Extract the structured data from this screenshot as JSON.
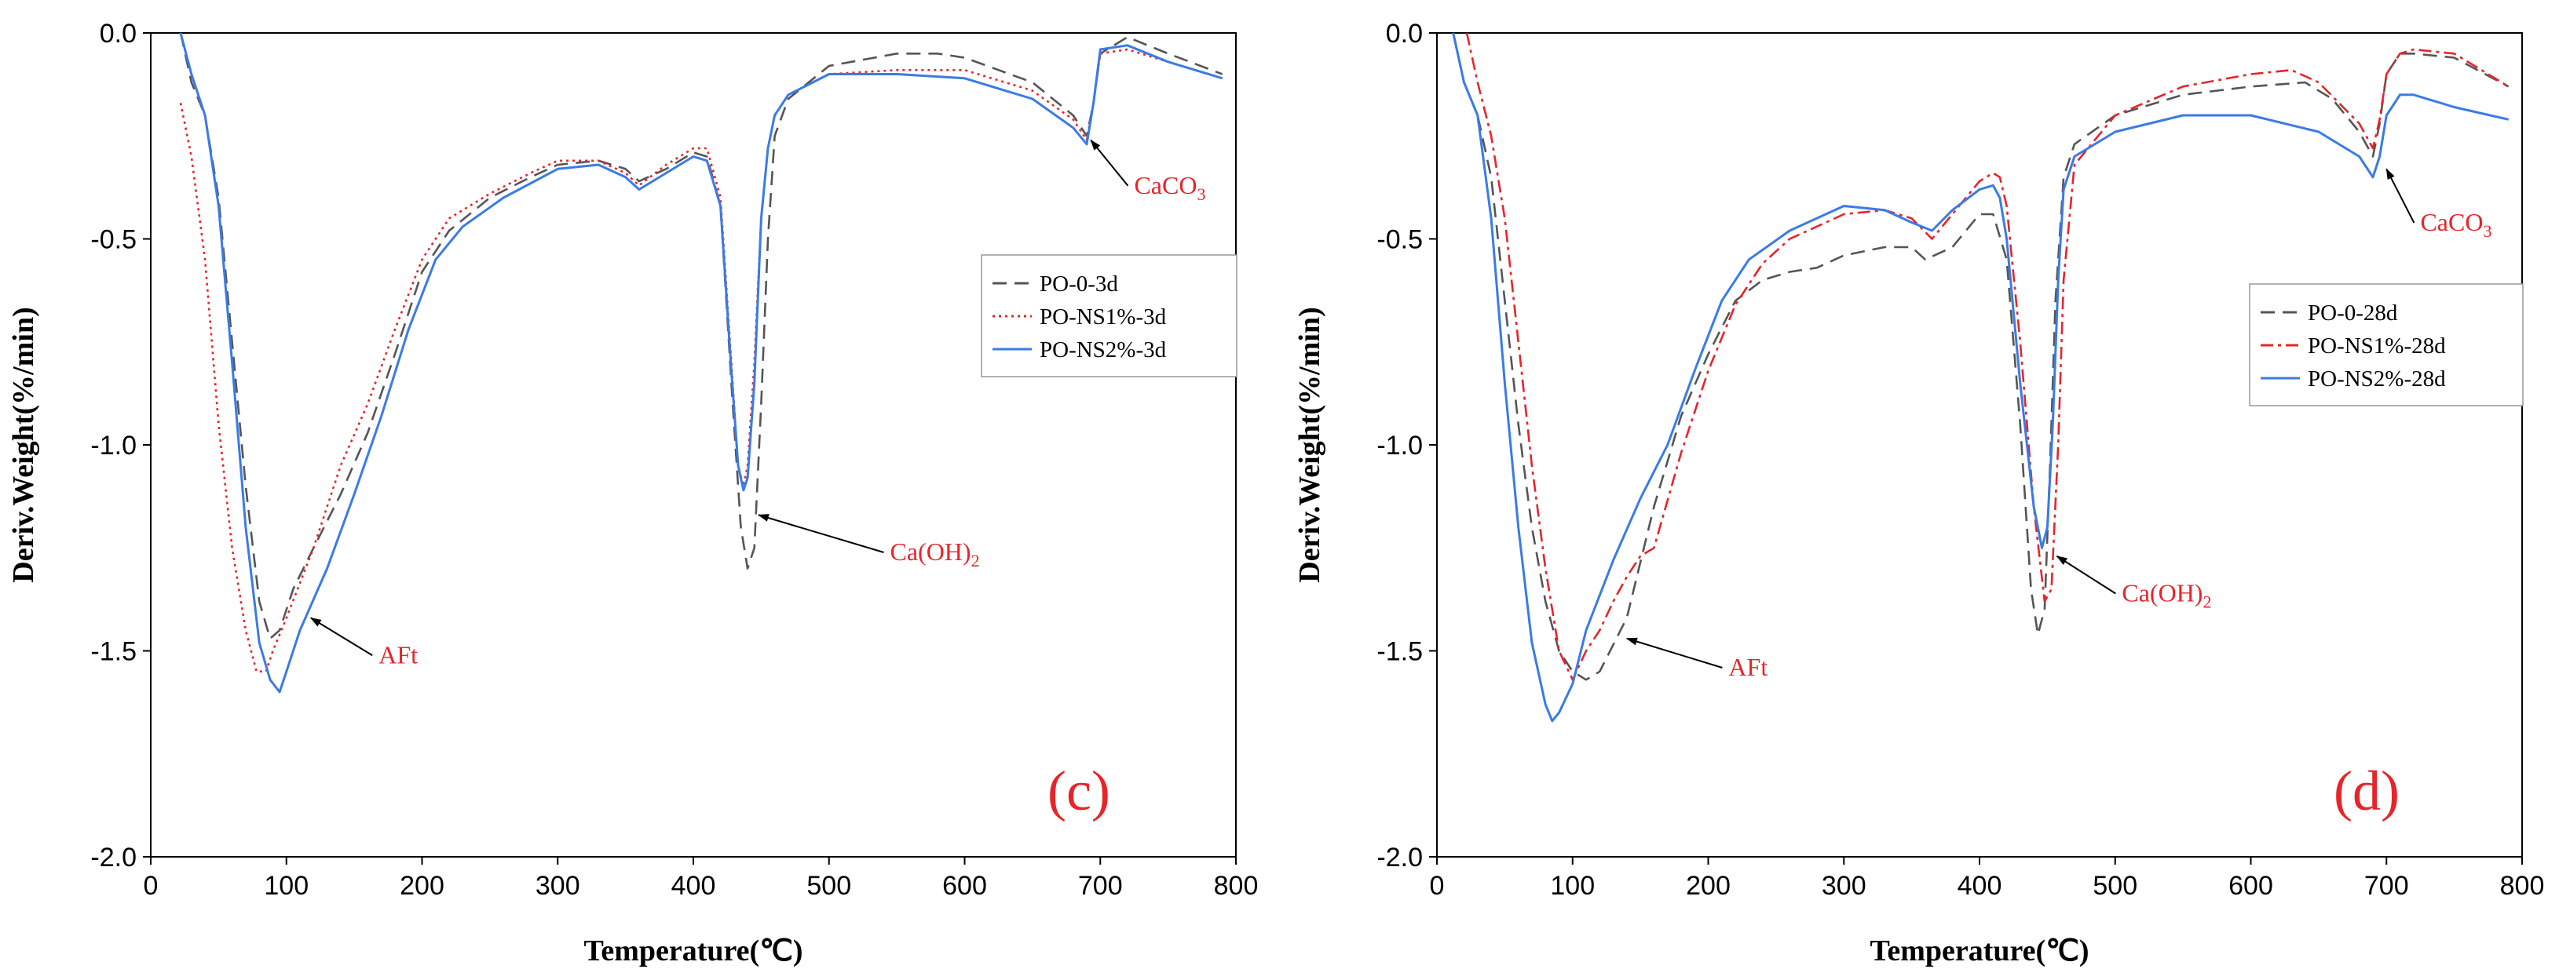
{
  "colors": {
    "PO-0": "#555555",
    "PO-NS1%": "#e8242a",
    "PO-NS2%": "#3a7be6",
    "annotation": "#e8242a"
  },
  "chart_data": [
    {
      "type": "line",
      "panel_label": "(c)",
      "xlabel": "Temperature(℃)",
      "ylabel": "Deriv.Weight(%/min)",
      "xlim": [
        0,
        800
      ],
      "ylim": [
        -2.0,
        0.0
      ],
      "xticks": [
        0,
        100,
        200,
        300,
        400,
        500,
        600,
        700,
        800
      ],
      "yticks": [
        0.0,
        -0.5,
        -1.0,
        -1.5,
        -2.0
      ],
      "xtick_labels": [
        "0",
        "100",
        "200",
        "300",
        "400",
        "500",
        "600",
        "700",
        "800"
      ],
      "ytick_labels": [
        "0.0",
        "-0.5",
        "-1.0",
        "-1.5",
        "-2.0"
      ],
      "legend_position": "center-right",
      "grid": false,
      "series": [
        {
          "name": "PO-0-3d",
          "style": "dash",
          "color_key": "PO-0",
          "x": [
            22,
            30,
            40,
            50,
            60,
            70,
            80,
            88,
            95,
            105,
            120,
            140,
            160,
            180,
            200,
            220,
            250,
            280,
            300,
            330,
            350,
            360,
            380,
            400,
            410,
            420,
            428,
            435,
            440,
            445,
            450,
            455,
            460,
            470,
            500,
            550,
            580,
            600,
            650,
            680,
            690,
            695,
            700,
            720,
            750,
            790
          ],
          "y": [
            0.0,
            -0.12,
            -0.2,
            -0.4,
            -0.75,
            -1.1,
            -1.38,
            -1.47,
            -1.45,
            -1.35,
            -1.25,
            -1.12,
            -0.97,
            -0.78,
            -0.58,
            -0.48,
            -0.4,
            -0.35,
            -0.32,
            -0.31,
            -0.33,
            -0.36,
            -0.33,
            -0.29,
            -0.3,
            -0.42,
            -0.85,
            -1.2,
            -1.3,
            -1.25,
            -0.9,
            -0.5,
            -0.25,
            -0.16,
            -0.08,
            -0.05,
            -0.05,
            -0.06,
            -0.12,
            -0.2,
            -0.25,
            -0.17,
            -0.05,
            -0.01,
            -0.05,
            -0.1
          ]
        },
        {
          "name": "PO-NS1%-3d",
          "style": "dot",
          "color_key": "PO-NS1%",
          "x": [
            22,
            30,
            40,
            50,
            60,
            70,
            78,
            85,
            90,
            100,
            120,
            140,
            160,
            180,
            200,
            220,
            250,
            280,
            300,
            330,
            350,
            360,
            380,
            400,
            410,
            420,
            428,
            433,
            437,
            440,
            445,
            450,
            455,
            460,
            470,
            500,
            550,
            600,
            650,
            680,
            690,
            695,
            700,
            720,
            750,
            790
          ],
          "y": [
            -0.17,
            -0.3,
            -0.55,
            -0.95,
            -1.25,
            -1.45,
            -1.55,
            -1.55,
            -1.5,
            -1.42,
            -1.25,
            -1.05,
            -0.9,
            -0.72,
            -0.55,
            -0.45,
            -0.39,
            -0.34,
            -0.31,
            -0.31,
            -0.34,
            -0.37,
            -0.32,
            -0.28,
            -0.28,
            -0.4,
            -0.8,
            -1.05,
            -1.1,
            -1.05,
            -0.8,
            -0.45,
            -0.28,
            -0.2,
            -0.15,
            -0.1,
            -0.09,
            -0.09,
            -0.14,
            -0.21,
            -0.26,
            -0.17,
            -0.05,
            -0.04,
            -0.07,
            -0.11
          ]
        },
        {
          "name": "PO-NS2%-3d",
          "style": "solid",
          "color_key": "PO-NS2%",
          "x": [
            22,
            30,
            40,
            50,
            60,
            70,
            80,
            88,
            95,
            100,
            110,
            130,
            150,
            170,
            190,
            210,
            230,
            260,
            300,
            330,
            350,
            360,
            380,
            400,
            410,
            420,
            428,
            433,
            437,
            440,
            445,
            450,
            455,
            460,
            470,
            500,
            550,
            600,
            650,
            680,
            690,
            695,
            700,
            720,
            750,
            790
          ],
          "y": [
            0.0,
            -0.1,
            -0.2,
            -0.42,
            -0.8,
            -1.2,
            -1.48,
            -1.57,
            -1.6,
            -1.55,
            -1.45,
            -1.3,
            -1.12,
            -0.93,
            -0.72,
            -0.55,
            -0.47,
            -0.4,
            -0.33,
            -0.32,
            -0.35,
            -0.38,
            -0.34,
            -0.3,
            -0.31,
            -0.42,
            -0.82,
            -1.05,
            -1.11,
            -1.08,
            -0.85,
            -0.45,
            -0.28,
            -0.2,
            -0.15,
            -0.1,
            -0.1,
            -0.11,
            -0.16,
            -0.23,
            -0.27,
            -0.17,
            -0.04,
            -0.03,
            -0.07,
            -0.11
          ]
        }
      ],
      "annotations": [
        {
          "text": "AFt",
          "x": 168,
          "y": -1.53,
          "arrow_to": [
            118,
            -1.42
          ]
        },
        {
          "text": "Ca(OH)",
          "sub": "2",
          "x": 545,
          "y": -1.28,
          "arrow_to": [
            448,
            -1.17
          ]
        },
        {
          "text": "CaCO",
          "sub": "3",
          "x": 725,
          "y": -0.39,
          "arrow_to": [
            693,
            -0.26
          ]
        }
      ]
    },
    {
      "type": "line",
      "panel_label": "(d)",
      "xlabel": "Temperature(℃)",
      "ylabel": "Deriv.Weight(%/min)",
      "xlim": [
        0,
        800
      ],
      "ylim": [
        -2.0,
        0.0
      ],
      "xticks": [
        0,
        100,
        200,
        300,
        400,
        500,
        600,
        700,
        800
      ],
      "yticks": [
        0.0,
        -0.5,
        -1.0,
        -1.5,
        -2.0
      ],
      "xtick_labels": [
        "0",
        "100",
        "200",
        "300",
        "400",
        "500",
        "600",
        "700",
        "800"
      ],
      "ytick_labels": [
        "0.0",
        "-0.5",
        "-1.0",
        "-1.5",
        "-2.0"
      ],
      "legend_position": "center-right",
      "grid": false,
      "series": [
        {
          "name": "PO-0-28d",
          "style": "dash",
          "color_key": "PO-0",
          "x": [
            12,
            20,
            30,
            40,
            50,
            60,
            70,
            80,
            90,
            100,
            110,
            120,
            140,
            160,
            180,
            200,
            220,
            240,
            260,
            280,
            300,
            330,
            350,
            360,
            380,
            400,
            410,
            420,
            430,
            438,
            443,
            448,
            452,
            456,
            462,
            470,
            500,
            550,
            600,
            640,
            660,
            680,
            690,
            695,
            700,
            710,
            720,
            750,
            790
          ],
          "y": [
            0.0,
            -0.12,
            -0.2,
            -0.35,
            -0.65,
            -0.95,
            -1.2,
            -1.38,
            -1.5,
            -1.55,
            -1.57,
            -1.55,
            -1.42,
            -1.15,
            -0.93,
            -0.78,
            -0.65,
            -0.6,
            -0.58,
            -0.57,
            -0.54,
            -0.52,
            -0.52,
            -0.55,
            -0.52,
            -0.44,
            -0.44,
            -0.55,
            -0.95,
            -1.35,
            -1.46,
            -1.4,
            -1.05,
            -0.65,
            -0.35,
            -0.27,
            -0.2,
            -0.15,
            -0.13,
            -0.12,
            -0.16,
            -0.24,
            -0.3,
            -0.22,
            -0.1,
            -0.05,
            -0.05,
            -0.06,
            -0.13
          ]
        },
        {
          "name": "PO-NS1%-28d",
          "style": "dashdot",
          "color_key": "PO-NS1%",
          "x": [
            22,
            30,
            40,
            50,
            60,
            70,
            80,
            90,
            100,
            110,
            120,
            130,
            140,
            150,
            160,
            180,
            200,
            220,
            240,
            260,
            280,
            300,
            330,
            350,
            365,
            380,
            400,
            410,
            415,
            420,
            430,
            440,
            448,
            453,
            458,
            462,
            470,
            500,
            550,
            600,
            630,
            650,
            680,
            690,
            695,
            700,
            710,
            720,
            750,
            790
          ],
          "y": [
            0.0,
            -0.12,
            -0.25,
            -0.45,
            -0.75,
            -1.05,
            -1.3,
            -1.5,
            -1.57,
            -1.5,
            -1.45,
            -1.38,
            -1.32,
            -1.27,
            -1.25,
            -1.02,
            -0.82,
            -0.66,
            -0.56,
            -0.5,
            -0.47,
            -0.44,
            -0.43,
            -0.45,
            -0.5,
            -0.44,
            -0.36,
            -0.34,
            -0.35,
            -0.42,
            -0.75,
            -1.15,
            -1.38,
            -1.35,
            -1.0,
            -0.6,
            -0.32,
            -0.2,
            -0.13,
            -0.1,
            -0.09,
            -0.12,
            -0.22,
            -0.28,
            -0.21,
            -0.1,
            -0.05,
            -0.04,
            -0.05,
            -0.13
          ]
        },
        {
          "name": "PO-NS2%-28d",
          "style": "solid",
          "color_key": "PO-NS2%",
          "x": [
            12,
            20,
            30,
            40,
            50,
            60,
            70,
            80,
            85,
            90,
            100,
            110,
            130,
            150,
            170,
            190,
            210,
            230,
            260,
            300,
            330,
            350,
            365,
            380,
            400,
            410,
            415,
            420,
            430,
            440,
            446,
            450,
            454,
            458,
            462,
            470,
            500,
            550,
            600,
            650,
            680,
            690,
            695,
            700,
            710,
            720,
            750,
            790
          ],
          "y": [
            0.0,
            -0.12,
            -0.2,
            -0.45,
            -0.85,
            -1.2,
            -1.48,
            -1.63,
            -1.67,
            -1.65,
            -1.58,
            -1.45,
            -1.28,
            -1.13,
            -1.0,
            -0.82,
            -0.65,
            -0.55,
            -0.48,
            -0.42,
            -0.43,
            -0.46,
            -0.48,
            -0.43,
            -0.38,
            -0.37,
            -0.4,
            -0.5,
            -0.85,
            -1.15,
            -1.25,
            -1.2,
            -0.95,
            -0.6,
            -0.38,
            -0.3,
            -0.24,
            -0.2,
            -0.2,
            -0.24,
            -0.3,
            -0.35,
            -0.3,
            -0.2,
            -0.15,
            -0.15,
            -0.18,
            -0.21
          ]
        }
      ],
      "annotations": [
        {
          "text": "AFt",
          "x": 215,
          "y": -1.56,
          "arrow_to": [
            140,
            -1.47
          ]
        },
        {
          "text": "Ca(OH)",
          "sub": "2",
          "x": 505,
          "y": -1.38,
          "arrow_to": [
            457,
            -1.27
          ]
        },
        {
          "text": "CaCO",
          "sub": "3",
          "x": 725,
          "y": -0.48,
          "arrow_to": [
            700,
            -0.33
          ]
        }
      ]
    }
  ]
}
